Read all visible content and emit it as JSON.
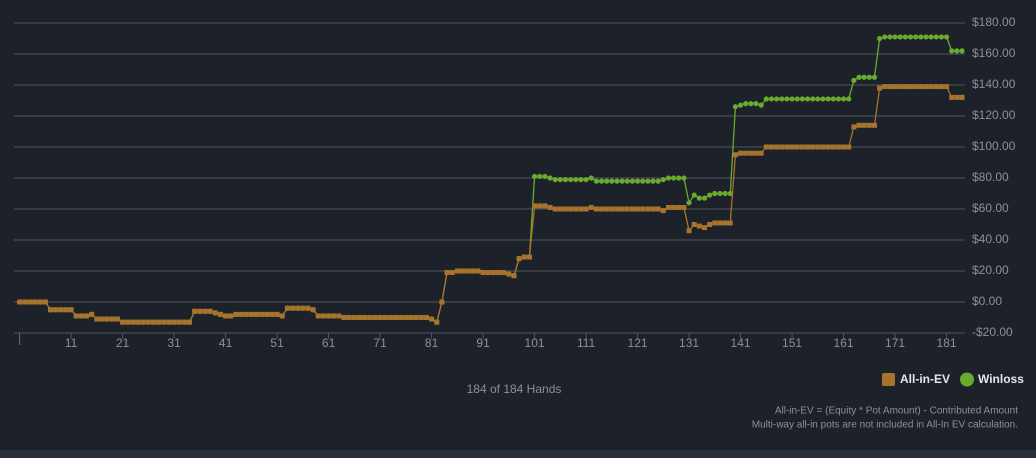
{
  "chart_data": {
    "type": "line",
    "x": [
      1,
      2,
      3,
      4,
      5,
      6,
      7,
      8,
      9,
      10,
      11,
      12,
      13,
      14,
      15,
      16,
      17,
      18,
      19,
      20,
      21,
      22,
      23,
      24,
      25,
      26,
      27,
      28,
      29,
      30,
      31,
      32,
      33,
      34,
      35,
      36,
      37,
      38,
      39,
      40,
      41,
      42,
      43,
      44,
      45,
      46,
      47,
      48,
      49,
      50,
      51,
      52,
      53,
      54,
      55,
      56,
      57,
      58,
      59,
      60,
      61,
      62,
      63,
      64,
      65,
      66,
      67,
      68,
      69,
      70,
      71,
      72,
      73,
      74,
      75,
      76,
      77,
      78,
      79,
      80,
      81,
      82,
      83,
      84,
      85,
      86,
      87,
      88,
      89,
      90,
      91,
      92,
      93,
      94,
      95,
      96,
      97,
      98,
      99,
      100,
      101,
      102,
      103,
      104,
      105,
      106,
      107,
      108,
      109,
      110,
      111,
      112,
      113,
      114,
      115,
      116,
      117,
      118,
      119,
      120,
      121,
      122,
      123,
      124,
      125,
      126,
      127,
      128,
      129,
      130,
      131,
      132,
      133,
      134,
      135,
      136,
      137,
      138,
      139,
      140,
      141,
      142,
      143,
      144,
      145,
      146,
      147,
      148,
      149,
      150,
      151,
      152,
      153,
      154,
      155,
      156,
      157,
      158,
      159,
      160,
      161,
      162,
      163,
      164,
      165,
      166,
      167,
      168,
      169,
      170,
      171,
      172,
      173,
      174,
      175,
      176,
      177,
      178,
      179,
      180,
      181,
      182,
      183,
      184
    ],
    "series": [
      {
        "name": "Winloss",
        "color": "#6aab2e",
        "marker": "circle",
        "values": [
          0,
          0,
          0,
          0,
          0,
          0,
          -5,
          -5,
          -5,
          -5,
          -5,
          -9,
          -9,
          -9,
          -8,
          -11,
          -11,
          -11,
          -11,
          -11,
          -13,
          -13,
          -13,
          -13,
          -13,
          -13,
          -13,
          -13,
          -13,
          -13,
          -13,
          -13,
          -13,
          -13,
          -6,
          -6,
          -6,
          -6,
          -7,
          -8,
          -9,
          -9,
          -8,
          -8,
          -8,
          -8,
          -8,
          -8,
          -8,
          -8,
          -8,
          -9,
          -4,
          -4,
          -4,
          -4,
          -4,
          -5,
          -9,
          -9,
          -9,
          -9,
          -9,
          -10,
          -10,
          -10,
          -10,
          -10,
          -10,
          -10,
          -10,
          -10,
          -10,
          -10,
          -10,
          -10,
          -10,
          -10,
          -10,
          -10,
          -11,
          -13,
          0,
          19,
          19,
          20,
          20,
          20,
          20,
          20,
          19,
          19,
          19,
          19,
          19,
          18,
          17,
          28,
          29,
          29,
          81,
          81,
          81,
          80,
          79,
          79,
          79,
          79,
          79,
          79,
          79,
          80,
          78,
          78,
          78,
          78,
          78,
          78,
          78,
          78,
          78,
          78,
          78,
          78,
          78,
          79,
          80,
          80,
          80,
          80,
          64,
          69,
          67,
          67,
          69,
          70,
          70,
          70,
          70,
          126,
          127,
          128,
          128,
          128,
          127,
          131,
          131,
          131,
          131,
          131,
          131,
          131,
          131,
          131,
          131,
          131,
          131,
          131,
          131,
          131,
          131,
          131,
          143,
          145,
          145,
          145,
          145,
          170,
          171,
          171,
          171,
          171,
          171,
          171,
          171,
          171,
          171,
          171,
          171,
          171,
          171,
          162,
          162,
          162
        ]
      },
      {
        "name": "All-in-EV",
        "color": "#a8732c",
        "marker": "square",
        "values": [
          0,
          0,
          0,
          0,
          0,
          0,
          -5,
          -5,
          -5,
          -5,
          -5,
          -9,
          -9,
          -9,
          -8,
          -11,
          -11,
          -11,
          -11,
          -11,
          -13,
          -13,
          -13,
          -13,
          -13,
          -13,
          -13,
          -13,
          -13,
          -13,
          -13,
          -13,
          -13,
          -13,
          -6,
          -6,
          -6,
          -6,
          -7,
          -8,
          -9,
          -9,
          -8,
          -8,
          -8,
          -8,
          -8,
          -8,
          -8,
          -8,
          -8,
          -9,
          -4,
          -4,
          -4,
          -4,
          -4,
          -5,
          -9,
          -9,
          -9,
          -9,
          -9,
          -10,
          -10,
          -10,
          -10,
          -10,
          -10,
          -10,
          -10,
          -10,
          -10,
          -10,
          -10,
          -10,
          -10,
          -10,
          -10,
          -10,
          -11,
          -13,
          0,
          19,
          19,
          20,
          20,
          20,
          20,
          20,
          19,
          19,
          19,
          19,
          19,
          18,
          17,
          28,
          29,
          29,
          62,
          62,
          62,
          61,
          60,
          60,
          60,
          60,
          60,
          60,
          60,
          61,
          60,
          60,
          60,
          60,
          60,
          60,
          60,
          60,
          60,
          60,
          60,
          60,
          60,
          59,
          61,
          61,
          61,
          61,
          46,
          50,
          49,
          48,
          50,
          51,
          51,
          51,
          51,
          95,
          96,
          96,
          96,
          96,
          96,
          100,
          100,
          100,
          100,
          100,
          100,
          100,
          100,
          100,
          100,
          100,
          100,
          100,
          100,
          100,
          100,
          100,
          113,
          114,
          114,
          114,
          114,
          138,
          139,
          139,
          139,
          139,
          139,
          139,
          139,
          139,
          139,
          139,
          139,
          139,
          139,
          132,
          132,
          132
        ]
      }
    ],
    "legend_order": [
      "All-in-EV",
      "Winloss"
    ],
    "xlim": [
      1,
      184
    ],
    "xticks": [
      11,
      21,
      31,
      41,
      51,
      61,
      71,
      81,
      91,
      101,
      111,
      121,
      131,
      141,
      151,
      161,
      171,
      181
    ],
    "ylim": [
      -20,
      180
    ],
    "yticks": [
      {
        "value": -20,
        "label": "-$20.00"
      },
      {
        "value": 0,
        "label": "$0.00"
      },
      {
        "value": 20,
        "label": "$20.00"
      },
      {
        "value": 40,
        "label": "$40.00"
      },
      {
        "value": 60,
        "label": "$60.00"
      },
      {
        "value": 80,
        "label": "$80.00"
      },
      {
        "value": 100,
        "label": "$100.00"
      },
      {
        "value": 120,
        "label": "$120.00"
      },
      {
        "value": 140,
        "label": "$140.00"
      },
      {
        "value": 160,
        "label": "$160.00"
      },
      {
        "value": 180,
        "label": "$180.00"
      }
    ],
    "grid": true,
    "caption": "184 of 184 Hands",
    "notes": [
      "All-in-EV = (Equity * Pot Amount) - Contributed Amount",
      "Multi-way all-in pots are not included in All-In EV calculation."
    ]
  }
}
